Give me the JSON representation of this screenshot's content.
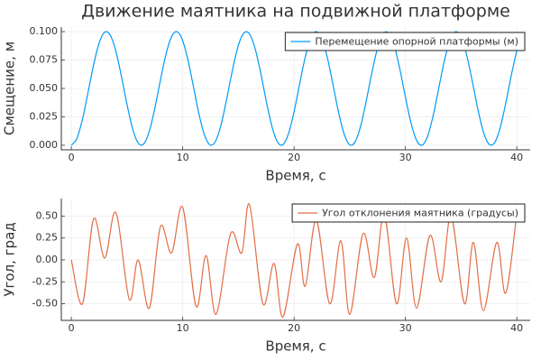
{
  "chart_data": [
    {
      "type": "line",
      "title": "Движение маятника на подвижной платформе",
      "xlabel": "Время, с",
      "ylabel": "Смещение, м",
      "xlim": [
        -0.9,
        41.2
      ],
      "ylim": [
        -0.004,
        0.104
      ],
      "xticks": [
        0,
        10,
        20,
        30,
        40
      ],
      "yticks": [
        {
          "value": 0,
          "label": "0.000"
        },
        0.025,
        {
          "value": 0.05,
          "label": "0.050"
        },
        0.075,
        {
          "value": 0.1,
          "label": "0.100"
        }
      ],
      "grid": true,
      "legend": "top-right",
      "x": [
        0,
        0.5,
        1,
        1.5,
        2,
        2.5,
        3,
        3.5,
        4,
        4.5,
        5,
        5.5,
        6,
        6.5,
        7,
        7.5,
        8,
        8.5,
        9,
        9.5,
        10,
        10.5,
        11,
        11.5,
        12,
        12.5,
        13,
        13.5,
        14,
        14.5,
        15,
        15.5,
        16,
        16.5,
        17,
        17.5,
        18,
        18.5,
        19,
        19.5,
        20,
        20.5,
        21,
        21.5,
        22,
        22.5,
        23,
        23.5,
        24,
        24.5,
        25,
        25.5,
        26,
        26.5,
        27,
        27.5,
        28,
        28.5,
        29,
        29.5,
        30,
        30.5,
        31,
        31.5,
        32,
        32.5,
        33,
        33.5,
        34,
        34.5,
        35,
        35.5,
        36,
        36.5,
        37,
        37.5,
        38,
        38.5,
        39,
        39.5,
        40
      ],
      "series": [
        {
          "name": "Перемещение опорной платформы (м)",
          "color": "#009af9",
          "values": [
            0,
            0.0061,
            0.023,
            0.0465,
            0.0708,
            0.0901,
            0.0995,
            0.0968,
            0.0827,
            0.0605,
            0.0358,
            0.0146,
            0.002,
            0.0012,
            0.0123,
            0.0327,
            0.0573,
            0.0801,
            0.0956,
            0.0999,
            0.092,
            0.0738,
            0.0498,
            0.0258,
            0.0078,
            0.0001,
            0.0046,
            0.0203,
            0.0432,
            0.0677,
            0.088,
            0.0989,
            0.0979,
            0.0851,
            0.0638,
            0.039,
            0.017,
            0.0031,
            0.0006,
            0.0102,
            0.0296,
            0.054,
            0.0774,
            0.0942,
            0.1,
            0.0937,
            0.0766,
            0.0531,
            0.0288,
            0.0097,
            0.0004,
            0.0034,
            0.0177,
            0.04,
            0.0646,
            0.0857,
            0.0981,
            0.0987,
            0.0874,
            0.0669,
            0.0423,
            0.0196,
            0.0043,
            0.0001,
            0.0083,
            0.0266,
            0.0507,
            0.0746,
            0.0924,
            0.0999,
            0.0952,
            0.0794,
            0.0564,
            0.0318,
            0.0117,
            0.001,
            0.0022,
            0.0152,
            0.0367,
            0.0614,
            0.0833
          ]
        }
      ]
    },
    {
      "type": "line",
      "xlabel": "Время, с",
      "ylabel": "Угол, град",
      "xlim": [
        -0.9,
        41.2
      ],
      "ylim": [
        -0.69,
        0.7
      ],
      "xticks": [
        0,
        10,
        20,
        30,
        40
      ],
      "yticks": [
        {
          "value": -0.5,
          "label": "-0.50"
        },
        -0.25,
        {
          "value": 0,
          "label": "0.00"
        },
        0.25,
        {
          "value": 0.5,
          "label": "0.50"
        }
      ],
      "grid": true,
      "legend": "top-right",
      "x": [
        0,
        1,
        2,
        3,
        4,
        5.2,
        6,
        7,
        8,
        9,
        10,
        11.2,
        12.1,
        13,
        14.3,
        15.3,
        16,
        17.2,
        18.2,
        19,
        20.3,
        21,
        22,
        23.2,
        24.2,
        25,
        26.2,
        27.2,
        28.1,
        29.2,
        30.1,
        31,
        32.2,
        33.2,
        34.1,
        35.3,
        36.1,
        37,
        38.2,
        39,
        40
      ],
      "series": [
        {
          "name": "Угол отклонения маятника (градусы)",
          "color": "#e26f46",
          "values": [
            0,
            -0.5,
            0.47,
            0.02,
            0.54,
            -0.45,
            0,
            -0.55,
            0.38,
            0.08,
            0.6,
            -0.53,
            0.05,
            -0.62,
            0.3,
            0.08,
            0.63,
            -0.5,
            -0.04,
            -0.65,
            0.18,
            -0.3,
            0.45,
            -0.5,
            0.22,
            -0.62,
            0.3,
            -0.2,
            0.52,
            -0.5,
            0.25,
            -0.55,
            0.28,
            -0.25,
            0.5,
            -0.5,
            0.2,
            -0.58,
            0.2,
            -0.38,
            0.53
          ]
        }
      ]
    }
  ]
}
